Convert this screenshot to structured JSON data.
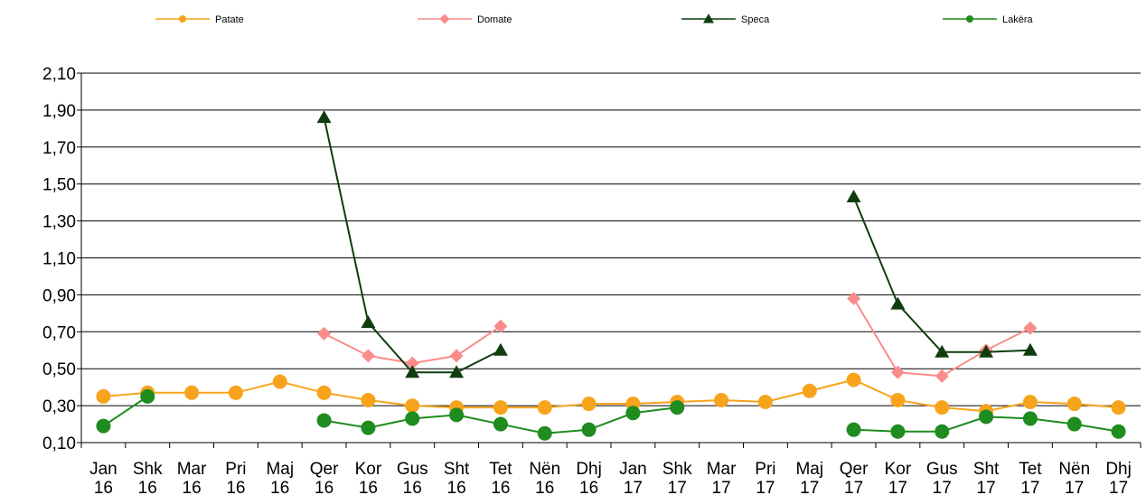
{
  "chart_data": {
    "type": "line",
    "title": "",
    "xlabel": "",
    "ylabel": "",
    "ylim": [
      0.1,
      2.1
    ],
    "yticks": [
      "0,10",
      "0,30",
      "0,50",
      "0,70",
      "0,90",
      "1,10",
      "1,30",
      "1,50",
      "1,70",
      "1,90",
      "2,10"
    ],
    "grid": "horizontal",
    "legend_position": "top",
    "categories": [
      [
        "Jan",
        "16"
      ],
      [
        "Shk",
        "16"
      ],
      [
        "Mar",
        "16"
      ],
      [
        "Pri",
        "16"
      ],
      [
        "Maj",
        "16"
      ],
      [
        "Qer",
        "16"
      ],
      [
        "Kor",
        "16"
      ],
      [
        "Gus",
        "16"
      ],
      [
        "Sht",
        "16"
      ],
      [
        "Tet",
        "16"
      ],
      [
        "Nën",
        "16"
      ],
      [
        "Dhj",
        "16"
      ],
      [
        "Jan",
        "17"
      ],
      [
        "Shk",
        "17"
      ],
      [
        "Mar",
        "17"
      ],
      [
        "Pri",
        "17"
      ],
      [
        "Maj",
        "17"
      ],
      [
        "Qer",
        "17"
      ],
      [
        "Kor",
        "17"
      ],
      [
        "Gus",
        "17"
      ],
      [
        "Sht",
        "17"
      ],
      [
        "Tet",
        "17"
      ],
      [
        "Nën",
        "17"
      ],
      [
        "Dhj",
        "17"
      ]
    ],
    "series": [
      {
        "name": "Patate",
        "color": "#F7A41C",
        "marker": "circle",
        "values": [
          0.35,
          0.37,
          0.37,
          0.37,
          0.43,
          0.37,
          0.33,
          0.3,
          0.29,
          0.29,
          0.29,
          0.31,
          0.31,
          0.32,
          0.33,
          0.32,
          0.38,
          0.44,
          0.33,
          0.29,
          0.27,
          0.32,
          0.31,
          0.29
        ]
      },
      {
        "name": "Domate",
        "color": "#FA8C8C",
        "marker": "diamond",
        "values": [
          null,
          null,
          null,
          null,
          null,
          0.69,
          0.57,
          0.53,
          0.57,
          0.73,
          null,
          null,
          null,
          null,
          null,
          null,
          null,
          0.88,
          0.48,
          0.46,
          0.6,
          0.72,
          null,
          null
        ]
      },
      {
        "name": "Speca",
        "color": "#0F3D0F",
        "marker": "triangle",
        "values": [
          null,
          null,
          null,
          null,
          null,
          1.86,
          0.75,
          0.48,
          0.48,
          0.6,
          null,
          null,
          null,
          null,
          null,
          null,
          null,
          1.43,
          0.85,
          0.59,
          0.59,
          0.6,
          null,
          null
        ]
      },
      {
        "name": "Lakëra",
        "color": "#1E8C1E",
        "marker": "circle",
        "values": [
          0.19,
          0.35,
          null,
          null,
          null,
          0.22,
          0.18,
          0.23,
          0.25,
          0.2,
          0.15,
          0.17,
          0.26,
          0.29,
          null,
          null,
          null,
          0.17,
          0.16,
          0.16,
          0.24,
          0.23,
          0.2,
          0.16
        ]
      }
    ]
  }
}
